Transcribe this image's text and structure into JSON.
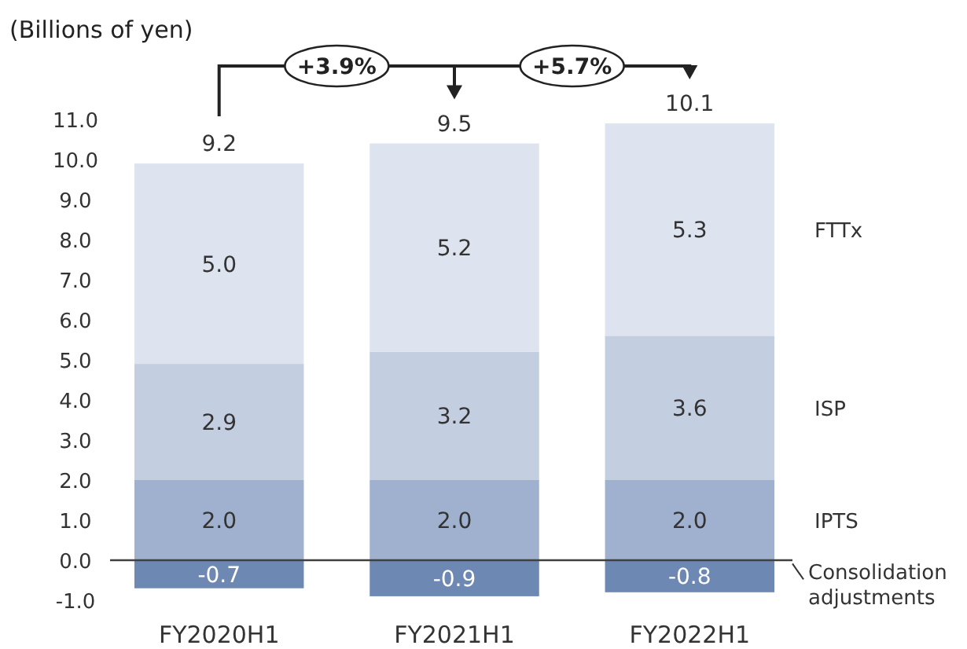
{
  "chart_data": {
    "type": "bar",
    "stacked": true,
    "ylabel": "(Billions of yen)",
    "categories": [
      "FY2020H1",
      "FY2021H1",
      "FY2022H1"
    ],
    "series": [
      {
        "name": "IPTS",
        "color": "#9fb1cf",
        "values": [
          2.0,
          2.0,
          2.0
        ],
        "value_labels": [
          "2.0",
          "2.0",
          "2.0"
        ]
      },
      {
        "name": "ISP",
        "color": "#c3cee1",
        "values": [
          2.9,
          3.2,
          3.6
        ],
        "value_labels": [
          "2.9",
          "3.2",
          "3.6"
        ]
      },
      {
        "name": "FTTx",
        "color": "#dde4ef",
        "values": [
          5.0,
          5.2,
          5.3
        ],
        "value_labels": [
          "5.0",
          "5.2",
          "5.3"
        ]
      },
      {
        "name": "Consolidation adjustments",
        "color": "#6e88b4",
        "values": [
          -0.7,
          -0.9,
          -0.8
        ],
        "value_labels": [
          "-0.7",
          "-0.9",
          "-0.8"
        ]
      }
    ],
    "ylim": [
      -1.0,
      11.0
    ],
    "yticks": [
      {
        "value": -1,
        "label": "-1.0"
      },
      {
        "value": 0,
        "label": "0.0"
      },
      {
        "value": 1,
        "label": "1.0"
      },
      {
        "value": 2,
        "label": "2.0"
      },
      {
        "value": 3,
        "label": "3.0"
      },
      {
        "value": 4,
        "label": "4.0"
      },
      {
        "value": 5,
        "label": "5.0"
      },
      {
        "value": 6,
        "label": "6.0"
      },
      {
        "value": 7,
        "label": "7.0"
      },
      {
        "value": 8,
        "label": "8.0"
      },
      {
        "value": 9,
        "label": "9.0"
      },
      {
        "value": 10,
        "label": "10.0"
      },
      {
        "value": 11,
        "label": "11.0"
      }
    ],
    "totals": [
      "9.2",
      "9.5",
      "10.1"
    ],
    "annotations": [
      "+3.9%",
      "+5.7%"
    ]
  }
}
